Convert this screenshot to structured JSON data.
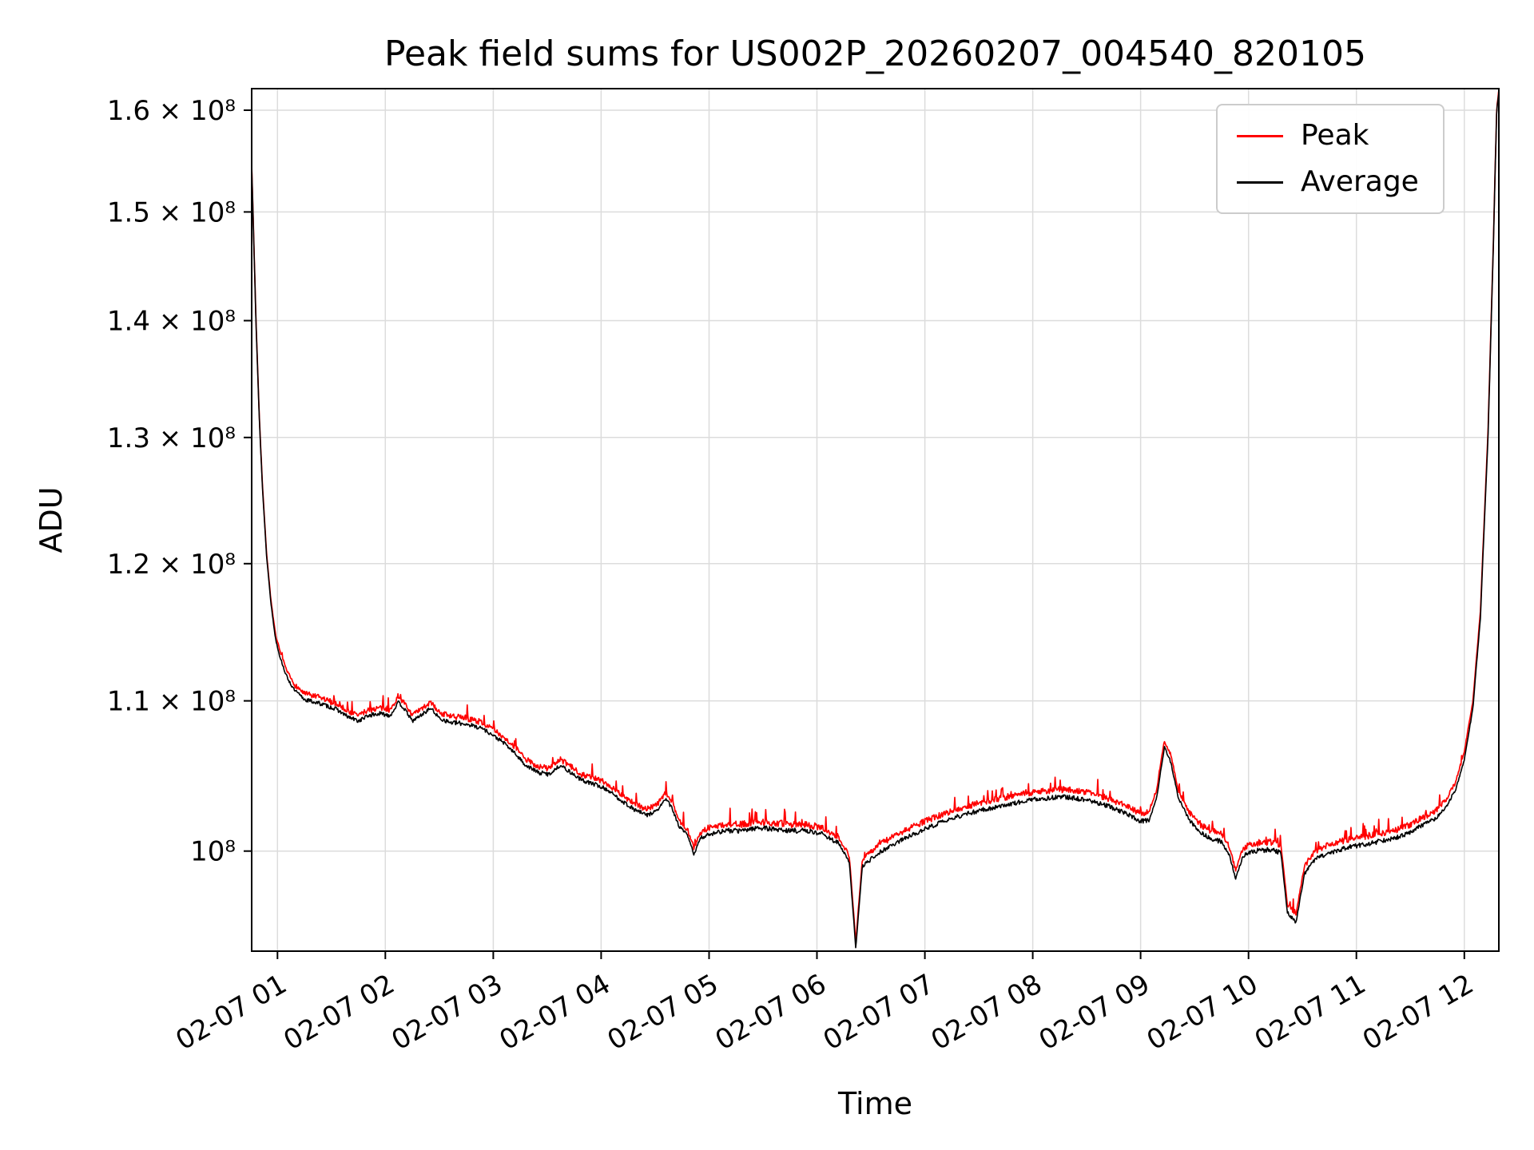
{
  "chart_data": {
    "type": "line",
    "title": "Peak field sums for US002P_20260207_004540_820105",
    "xlabel": "Time",
    "ylabel": "ADU",
    "y_scale": "log",
    "grid": true,
    "ylim_1e8": [
      0.9385,
      1.622
    ],
    "xlim_hours": [
      0.761,
      12.32
    ],
    "y_ticks": [
      {
        "value": 1.6,
        "label": "1.6 × 10⁸"
      },
      {
        "value": 1.5,
        "label": "1.5 × 10⁸"
      },
      {
        "value": 1.4,
        "label": "1.4 × 10⁸"
      },
      {
        "value": 1.3,
        "label": "1.3 × 10⁸"
      },
      {
        "value": 1.2,
        "label": "1.2 × 10⁸"
      },
      {
        "value": 1.1,
        "label": "1.1 × 10⁸"
      },
      {
        "value": 1.0,
        "label": "10⁸"
      }
    ],
    "x_ticks": [
      {
        "hour": 1,
        "label": "02-07 01"
      },
      {
        "hour": 2,
        "label": "02-07 02"
      },
      {
        "hour": 3,
        "label": "02-07 03"
      },
      {
        "hour": 4,
        "label": "02-07 04"
      },
      {
        "hour": 5,
        "label": "02-07 05"
      },
      {
        "hour": 6,
        "label": "02-07 06"
      },
      {
        "hour": 7,
        "label": "02-07 07"
      },
      {
        "hour": 8,
        "label": "02-07 08"
      },
      {
        "hour": 9,
        "label": "02-07 09"
      },
      {
        "hour": 10,
        "label": "02-07 10"
      },
      {
        "hour": 11,
        "label": "02-07 11"
      },
      {
        "hour": 12,
        "label": "02-07 12"
      }
    ],
    "legend": {
      "position": "upper right",
      "entries": [
        {
          "label": "Peak",
          "color": "#ff0000"
        },
        {
          "label": "Average",
          "color": "#000000"
        }
      ]
    },
    "series": [
      {
        "name": "Peak",
        "color": "#ff0000",
        "noise": 0.0022,
        "spike_prob": 0.06,
        "spike_max": 0.01,
        "keypoints_hours_vs_1e8ADU": [
          [
            0.761,
            1.546
          ],
          [
            0.78,
            1.477
          ],
          [
            0.8,
            1.402
          ],
          [
            0.83,
            1.322
          ],
          [
            0.86,
            1.262
          ],
          [
            0.9,
            1.207
          ],
          [
            0.94,
            1.172
          ],
          [
            0.98,
            1.148
          ],
          [
            1.02,
            1.136
          ],
          [
            1.08,
            1.122
          ],
          [
            1.15,
            1.112
          ],
          [
            1.25,
            1.105
          ],
          [
            1.4,
            1.102
          ],
          [
            1.55,
            1.098
          ],
          [
            1.65,
            1.093
          ],
          [
            1.75,
            1.09
          ],
          [
            1.85,
            1.094
          ],
          [
            1.95,
            1.095
          ],
          [
            2.05,
            1.094
          ],
          [
            2.12,
            1.103
          ],
          [
            2.18,
            1.098
          ],
          [
            2.25,
            1.09
          ],
          [
            2.33,
            1.094
          ],
          [
            2.42,
            1.099
          ],
          [
            2.5,
            1.092
          ],
          [
            2.6,
            1.089
          ],
          [
            2.75,
            1.088
          ],
          [
            2.9,
            1.085
          ],
          [
            3.0,
            1.08
          ],
          [
            3.1,
            1.075
          ],
          [
            3.2,
            1.068
          ],
          [
            3.3,
            1.06
          ],
          [
            3.42,
            1.055
          ],
          [
            3.52,
            1.054
          ],
          [
            3.62,
            1.06
          ],
          [
            3.72,
            1.055
          ],
          [
            3.82,
            1.05
          ],
          [
            3.95,
            1.047
          ],
          [
            4.05,
            1.044
          ],
          [
            4.18,
            1.037
          ],
          [
            4.3,
            1.031
          ],
          [
            4.42,
            1.027
          ],
          [
            4.52,
            1.03
          ],
          [
            4.6,
            1.038
          ],
          [
            4.66,
            1.031
          ],
          [
            4.72,
            1.02
          ],
          [
            4.8,
            1.014
          ],
          [
            4.86,
            1.002
          ],
          [
            4.92,
            1.012
          ],
          [
            5.0,
            1.015
          ],
          [
            5.15,
            1.017
          ],
          [
            5.3,
            1.017
          ],
          [
            5.45,
            1.019
          ],
          [
            5.6,
            1.018
          ],
          [
            5.75,
            1.017
          ],
          [
            5.9,
            1.017
          ],
          [
            6.05,
            1.015
          ],
          [
            6.2,
            1.009
          ],
          [
            6.3,
            0.997
          ],
          [
            6.36,
            0.944
          ],
          [
            6.42,
            0.994
          ],
          [
            6.55,
            1.003
          ],
          [
            6.7,
            1.009
          ],
          [
            6.9,
            1.016
          ],
          [
            7.1,
            1.022
          ],
          [
            7.3,
            1.027
          ],
          [
            7.5,
            1.031
          ],
          [
            7.7,
            1.034
          ],
          [
            7.9,
            1.037
          ],
          [
            8.1,
            1.039
          ],
          [
            8.3,
            1.04
          ],
          [
            8.5,
            1.038
          ],
          [
            8.7,
            1.034
          ],
          [
            8.9,
            1.028
          ],
          [
            9.0,
            1.024
          ],
          [
            9.08,
            1.025
          ],
          [
            9.15,
            1.04
          ],
          [
            9.22,
            1.073
          ],
          [
            9.28,
            1.063
          ],
          [
            9.35,
            1.039
          ],
          [
            9.45,
            1.025
          ],
          [
            9.55,
            1.017
          ],
          [
            9.65,
            1.013
          ],
          [
            9.75,
            1.011
          ],
          [
            9.82,
            1.003
          ],
          [
            9.88,
            0.988
          ],
          [
            9.95,
            1.002
          ],
          [
            10.05,
            1.005
          ],
          [
            10.2,
            1.006
          ],
          [
            10.3,
            1.004
          ],
          [
            10.36,
            0.967
          ],
          [
            10.44,
            0.961
          ],
          [
            10.52,
            0.991
          ],
          [
            10.62,
            1.0
          ],
          [
            10.75,
            1.004
          ],
          [
            10.9,
            1.007
          ],
          [
            11.05,
            1.009
          ],
          [
            11.2,
            1.011
          ],
          [
            11.35,
            1.013
          ],
          [
            11.5,
            1.017
          ],
          [
            11.62,
            1.022
          ],
          [
            11.72,
            1.025
          ],
          [
            11.82,
            1.032
          ],
          [
            11.92,
            1.045
          ],
          [
            12.0,
            1.065
          ],
          [
            12.08,
            1.1
          ],
          [
            12.15,
            1.165
          ],
          [
            12.22,
            1.305
          ],
          [
            12.27,
            1.473
          ],
          [
            12.3,
            1.602
          ],
          [
            12.32,
            1.62
          ]
        ]
      },
      {
        "name": "Average",
        "color": "#000000",
        "noise": 0.0016,
        "spike_prob": 0,
        "spike_max": 0,
        "keypoints_hours_vs_1e8ADU": [
          [
            0.761,
            1.545
          ],
          [
            0.78,
            1.475
          ],
          [
            0.8,
            1.4
          ],
          [
            0.83,
            1.32
          ],
          [
            0.86,
            1.26
          ],
          [
            0.9,
            1.205
          ],
          [
            0.94,
            1.17
          ],
          [
            0.98,
            1.145
          ],
          [
            1.02,
            1.132
          ],
          [
            1.08,
            1.118
          ],
          [
            1.15,
            1.108
          ],
          [
            1.25,
            1.101
          ],
          [
            1.4,
            1.098
          ],
          [
            1.55,
            1.094
          ],
          [
            1.65,
            1.089
          ],
          [
            1.75,
            1.086
          ],
          [
            1.85,
            1.09
          ],
          [
            1.95,
            1.091
          ],
          [
            2.05,
            1.09
          ],
          [
            2.12,
            1.099
          ],
          [
            2.18,
            1.094
          ],
          [
            2.25,
            1.086
          ],
          [
            2.33,
            1.09
          ],
          [
            2.42,
            1.095
          ],
          [
            2.5,
            1.088
          ],
          [
            2.6,
            1.085
          ],
          [
            2.75,
            1.084
          ],
          [
            2.9,
            1.081
          ],
          [
            3.0,
            1.076
          ],
          [
            3.1,
            1.071
          ],
          [
            3.2,
            1.064
          ],
          [
            3.3,
            1.056
          ],
          [
            3.42,
            1.051
          ],
          [
            3.52,
            1.05
          ],
          [
            3.62,
            1.056
          ],
          [
            3.72,
            1.051
          ],
          [
            3.82,
            1.046
          ],
          [
            3.95,
            1.043
          ],
          [
            4.05,
            1.04
          ],
          [
            4.18,
            1.033
          ],
          [
            4.3,
            1.027
          ],
          [
            4.42,
            1.023
          ],
          [
            4.52,
            1.026
          ],
          [
            4.6,
            1.034
          ],
          [
            4.66,
            1.027
          ],
          [
            4.72,
            1.016
          ],
          [
            4.8,
            1.01
          ],
          [
            4.86,
            0.998
          ],
          [
            4.92,
            1.008
          ],
          [
            5.0,
            1.011
          ],
          [
            5.15,
            1.013
          ],
          [
            5.3,
            1.013
          ],
          [
            5.45,
            1.015
          ],
          [
            5.6,
            1.014
          ],
          [
            5.75,
            1.013
          ],
          [
            5.9,
            1.013
          ],
          [
            6.05,
            1.011
          ],
          [
            6.2,
            1.005
          ],
          [
            6.3,
            0.993
          ],
          [
            6.36,
            0.94
          ],
          [
            6.42,
            0.99
          ],
          [
            6.55,
            0.998
          ],
          [
            6.7,
            1.004
          ],
          [
            6.9,
            1.011
          ],
          [
            7.1,
            1.017
          ],
          [
            7.3,
            1.022
          ],
          [
            7.5,
            1.026
          ],
          [
            7.7,
            1.029
          ],
          [
            7.9,
            1.032
          ],
          [
            8.1,
            1.034
          ],
          [
            8.3,
            1.035
          ],
          [
            8.5,
            1.033
          ],
          [
            8.7,
            1.029
          ],
          [
            8.9,
            1.023
          ],
          [
            9.0,
            1.019
          ],
          [
            9.08,
            1.02
          ],
          [
            9.15,
            1.035
          ],
          [
            9.22,
            1.068
          ],
          [
            9.28,
            1.058
          ],
          [
            9.35,
            1.034
          ],
          [
            9.45,
            1.02
          ],
          [
            9.55,
            1.012
          ],
          [
            9.65,
            1.008
          ],
          [
            9.75,
            1.006
          ],
          [
            9.82,
            0.998
          ],
          [
            9.88,
            0.983
          ],
          [
            9.95,
            0.997
          ],
          [
            10.05,
            1.0
          ],
          [
            10.2,
            1.001
          ],
          [
            10.3,
            0.999
          ],
          [
            10.36,
            0.962
          ],
          [
            10.44,
            0.956
          ],
          [
            10.52,
            0.986
          ],
          [
            10.62,
            0.995
          ],
          [
            10.75,
            0.999
          ],
          [
            10.9,
            1.002
          ],
          [
            11.05,
            1.004
          ],
          [
            11.2,
            1.006
          ],
          [
            11.35,
            1.008
          ],
          [
            11.5,
            1.012
          ],
          [
            11.62,
            1.017
          ],
          [
            11.72,
            1.02
          ],
          [
            11.82,
            1.027
          ],
          [
            11.92,
            1.04
          ],
          [
            12.0,
            1.06
          ],
          [
            12.08,
            1.095
          ],
          [
            12.15,
            1.16
          ],
          [
            12.22,
            1.3
          ],
          [
            12.27,
            1.47
          ],
          [
            12.3,
            1.6
          ],
          [
            12.32,
            1.618
          ]
        ]
      }
    ]
  }
}
